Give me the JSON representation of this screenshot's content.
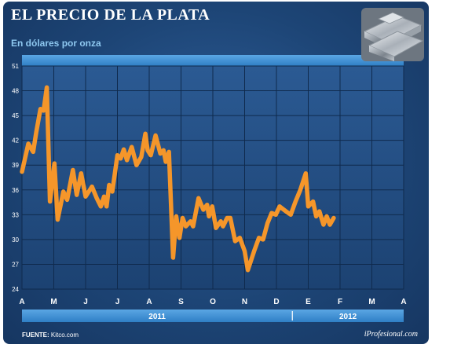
{
  "header": {
    "title": "EL PRECIO DE LA PLATA",
    "subtitle": "En dólares por onza"
  },
  "footer": {
    "source_label": "FUENTE:",
    "source_value": "Kitco.com",
    "watermark": "iProfesional.com"
  },
  "colors": {
    "line": "#f5962a",
    "background": "#1f4a7d",
    "years_band": "#3f8fd2",
    "text": "#ffffff"
  },
  "chart_data": {
    "type": "line",
    "title": "EL PRECIO DE LA PLATA",
    "subtitle": "En dólares por onza",
    "xlabel": "",
    "ylabel": "",
    "ylim": [
      24,
      51
    ],
    "yticks": [
      24,
      27,
      30,
      33,
      36,
      39,
      42,
      45,
      48,
      51
    ],
    "x_range": [
      0,
      12
    ],
    "month_ticks": [
      "A",
      "M",
      "J",
      "J",
      "A",
      "S",
      "O",
      "N",
      "D",
      "E",
      "F",
      "M",
      "A"
    ],
    "year_labels": [
      {
        "label": "2011",
        "from": 0,
        "to": 8.5
      },
      {
        "label": "2012",
        "from": 8.5,
        "to": 12
      }
    ],
    "grid": true,
    "legend": "none",
    "series": [
      {
        "values": [
          [
            0.0,
            38.2
          ],
          [
            0.2,
            41.6
          ],
          [
            0.35,
            40.6
          ],
          [
            0.45,
            43.0
          ],
          [
            0.58,
            45.8
          ],
          [
            0.68,
            45.6
          ],
          [
            0.78,
            48.4
          ],
          [
            0.88,
            34.6
          ],
          [
            1.02,
            39.2
          ],
          [
            1.12,
            32.4
          ],
          [
            1.3,
            35.8
          ],
          [
            1.42,
            34.8
          ],
          [
            1.6,
            38.4
          ],
          [
            1.72,
            35.4
          ],
          [
            1.86,
            38.0
          ],
          [
            2.0,
            35.2
          ],
          [
            2.2,
            36.4
          ],
          [
            2.35,
            35.0
          ],
          [
            2.48,
            34.0
          ],
          [
            2.58,
            35.2
          ],
          [
            2.66,
            34.0
          ],
          [
            2.74,
            36.6
          ],
          [
            2.84,
            35.8
          ],
          [
            3.0,
            40.2
          ],
          [
            3.1,
            39.8
          ],
          [
            3.2,
            40.9
          ],
          [
            3.3,
            39.6
          ],
          [
            3.45,
            41.2
          ],
          [
            3.6,
            39.0
          ],
          [
            3.75,
            40.0
          ],
          [
            3.88,
            42.8
          ],
          [
            3.95,
            40.8
          ],
          [
            4.05,
            40.2
          ],
          [
            4.2,
            42.6
          ],
          [
            4.35,
            40.4
          ],
          [
            4.45,
            40.8
          ],
          [
            4.52,
            39.4
          ],
          [
            4.62,
            40.6
          ],
          [
            4.75,
            27.8
          ],
          [
            4.85,
            32.8
          ],
          [
            4.95,
            30.2
          ],
          [
            5.05,
            32.6
          ],
          [
            5.15,
            31.6
          ],
          [
            5.3,
            32.2
          ],
          [
            5.38,
            31.6
          ],
          [
            5.55,
            35.0
          ],
          [
            5.7,
            33.6
          ],
          [
            5.82,
            34.2
          ],
          [
            5.88,
            32.8
          ],
          [
            5.98,
            34.0
          ],
          [
            6.1,
            31.4
          ],
          [
            6.25,
            32.2
          ],
          [
            6.32,
            31.6
          ],
          [
            6.45,
            32.6
          ],
          [
            6.55,
            32.6
          ],
          [
            6.7,
            29.8
          ],
          [
            6.85,
            30.2
          ],
          [
            7.0,
            28.6
          ],
          [
            7.1,
            26.3
          ],
          [
            7.3,
            28.6
          ],
          [
            7.45,
            30.2
          ],
          [
            7.58,
            30.0
          ],
          [
            7.72,
            32.0
          ],
          [
            7.85,
            33.2
          ],
          [
            7.98,
            33.0
          ],
          [
            8.1,
            34.0
          ],
          [
            8.3,
            33.4
          ],
          [
            8.45,
            33.0
          ],
          [
            8.6,
            34.6
          ],
          [
            8.75,
            36.0
          ],
          [
            8.92,
            38.0
          ],
          [
            9.0,
            34.0
          ],
          [
            9.15,
            34.6
          ],
          [
            9.25,
            32.8
          ],
          [
            9.35,
            33.4
          ],
          [
            9.48,
            31.8
          ],
          [
            9.58,
            32.8
          ],
          [
            9.68,
            31.8
          ],
          [
            9.8,
            32.6
          ]
        ]
      }
    ]
  }
}
